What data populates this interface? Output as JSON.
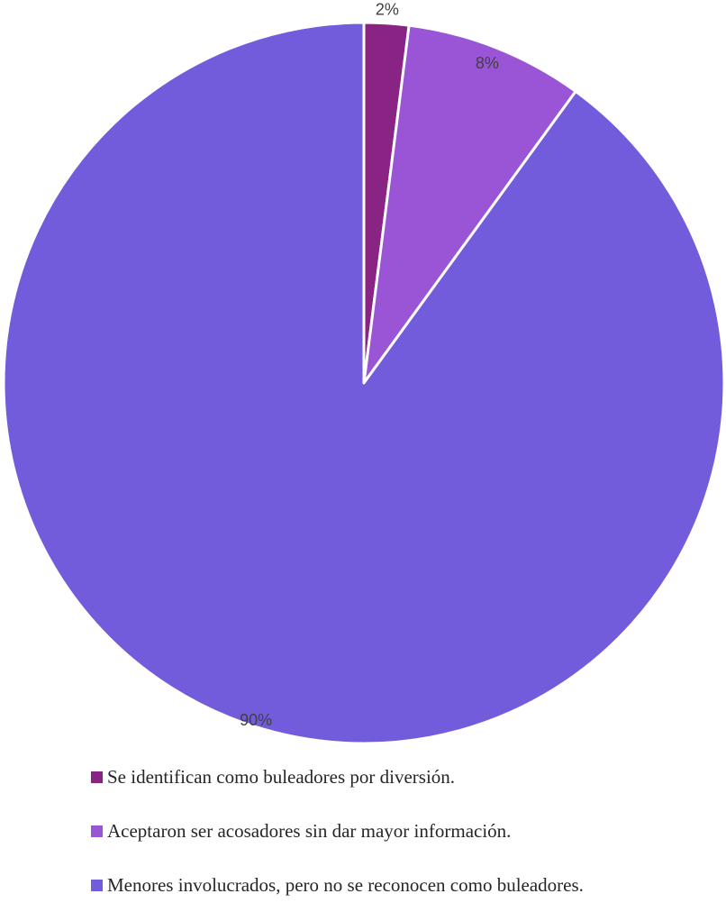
{
  "chart_data": {
    "type": "pie",
    "start_angle": "12 o'clock",
    "direction": "clockwise",
    "title": "",
    "categories": [
      "Se identifican como buleadores por diversión.",
      "Aceptaron ser acosadores sin dar mayor información.",
      "Menores involucrados, pero no se reconocen como buleadores."
    ],
    "values": [
      2,
      8,
      90
    ],
    "data_labels": [
      "2%",
      "8%",
      "90%"
    ],
    "colors": [
      "#8a2484",
      "#9a55d6",
      "#735cdb"
    ],
    "legend": {
      "position": "bottom",
      "entries": [
        "Se identifican como buleadores por diversión.",
        "Aceptaron ser acosadores sin dar mayor información.",
        "Menores involucrados, pero no se reconocen como buleadores."
      ]
    }
  }
}
